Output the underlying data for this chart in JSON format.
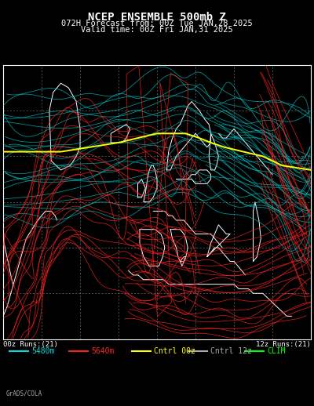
{
  "title_line1": "NCEP ENSEMBLE 500mb Z",
  "title_line2": "072H Forecast from: 00Z Tue JAN,28 2025",
  "title_line3": "Valid time: 00Z Fri JAN,31 2025",
  "background_color": "#000000",
  "fig_bg": "#000000",
  "map_bg": "#000000",
  "coastline_color": "#ffffff",
  "grid_color": "#888888",
  "title_color": "#ffffff",
  "label_left": "00z Runs:(21)",
  "label_right": "12z Runs:(21)",
  "legend_items": [
    {
      "label": "5480m",
      "color": "#00dddd",
      "lw": 1.5
    },
    {
      "label": "5640m",
      "color": "#ff2222",
      "lw": 1.5
    },
    {
      "label": "Cntrl 00z",
      "color": "#ffff00",
      "lw": 1.5
    },
    {
      "label": "Cntrl 12z",
      "color": "#aaaaaa",
      "lw": 1.5
    },
    {
      "label": "CLIM",
      "color": "#00ff00",
      "lw": 1.5
    }
  ],
  "credit": "GrADS/COLA",
  "title_fontsize": 10,
  "subtitle_fontsize": 7.5,
  "legend_fontsize": 7,
  "label_fontsize": 6.5
}
